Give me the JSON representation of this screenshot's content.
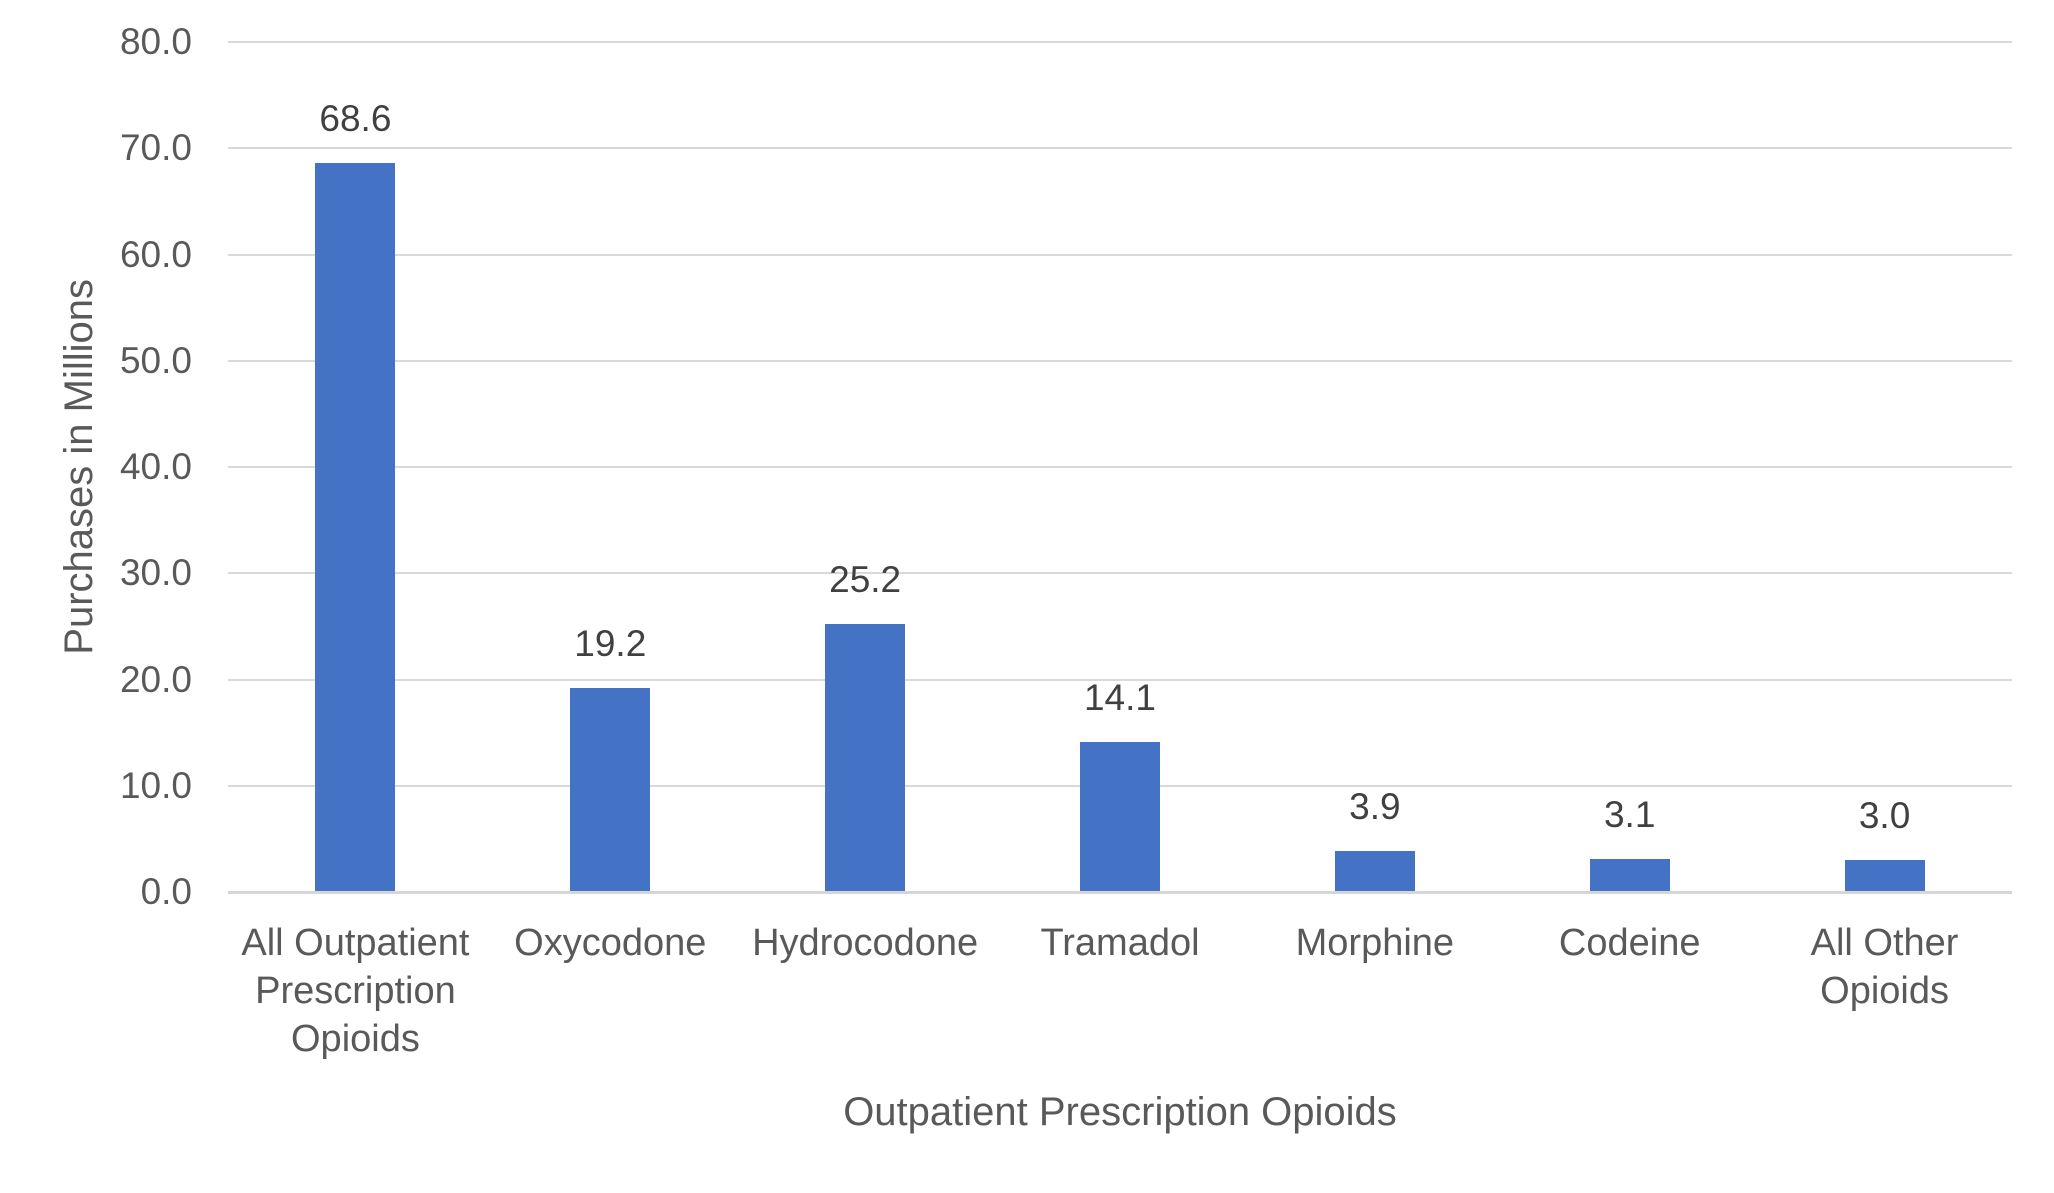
{
  "chart_data": {
    "type": "bar",
    "title": "",
    "xlabel": "Outpatient Prescription Opioids",
    "ylabel": "Purchases in Millions",
    "categories": [
      "All Outpatient Prescription Opioids",
      "Oxycodone",
      "Hydrocodone",
      "Tramadol",
      "Morphine",
      "Codeine",
      "All Other Opioids"
    ],
    "category_lines": [
      [
        "All Outpatient",
        "Prescription",
        "Opioids"
      ],
      [
        "Oxycodone"
      ],
      [
        "Hydrocodone"
      ],
      [
        "Tramadol"
      ],
      [
        "Morphine"
      ],
      [
        "Codeine"
      ],
      [
        "All Other",
        "Opioids"
      ]
    ],
    "values": [
      68.6,
      19.2,
      25.2,
      14.1,
      3.9,
      3.1,
      3.0
    ],
    "data_labels": [
      "68.6",
      "19.2",
      "25.2",
      "14.1",
      "3.9",
      "3.1",
      "3.0"
    ],
    "ylim": [
      0,
      80
    ],
    "ytick_step": 10,
    "ytick_labels": [
      "0.0",
      "10.0",
      "20.0",
      "30.0",
      "40.0",
      "50.0",
      "60.0",
      "70.0",
      "80.0"
    ],
    "grid": true,
    "legend": false,
    "bar_color": "#4472C4",
    "gridline_color": "#D9D9D9",
    "axis_text_color": "#595959",
    "data_label_color": "#404040"
  }
}
